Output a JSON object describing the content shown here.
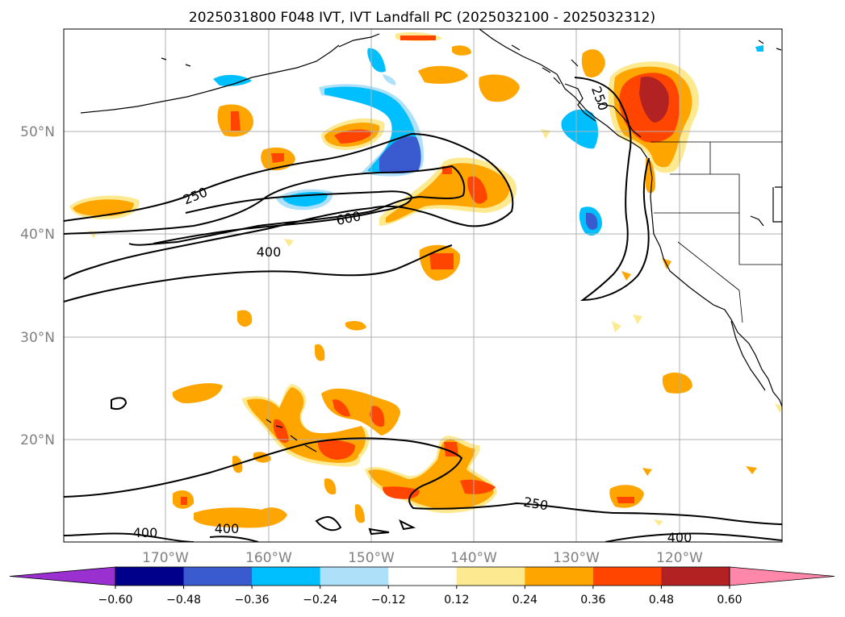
{
  "title": "2025031800 F048 IVT, IVT Landfall PC (2025032100 - 2025032312)",
  "axes": {
    "lat_labels": [
      "50°N",
      "40°N",
      "30°N",
      "20°N"
    ],
    "lon_labels": [
      "170°W",
      "160°W",
      "150°W",
      "140°W",
      "130°W",
      "120°W"
    ],
    "lat_values": [
      50,
      40,
      30,
      20
    ],
    "lon_values": [
      -170,
      -160,
      -150,
      -140,
      -130,
      -120
    ],
    "lon_range": [
      -180,
      -110
    ],
    "lat_range": [
      10,
      60
    ],
    "grid": true
  },
  "contour_labels": [
    "250",
    "600",
    "400",
    "400",
    "400",
    "250",
    "400",
    "250"
  ],
  "colorbar": {
    "tick_labels": [
      "−0.60",
      "−0.48",
      "−0.36",
      "−0.24",
      "−0.12",
      "0.12",
      "0.24",
      "0.36",
      "0.48",
      "0.60"
    ],
    "colors": [
      "#9b30d0",
      "#00008b",
      "#3a5bd0",
      "#00bfff",
      "#aee0fa",
      "#ffffff",
      "#fde98f",
      "#ffa500",
      "#ff4500",
      "#b22222",
      "#ff88aa"
    ]
  },
  "chart_data": {
    "type": "heatmap",
    "title": "2025031800 F048 IVT, IVT Landfall PC (2025032100 - 2025032312)",
    "x_ticks": [
      "170°W",
      "160°W",
      "150°W",
      "140°W",
      "130°W",
      "120°W"
    ],
    "y_ticks": [
      "50°N",
      "40°N",
      "30°N",
      "20°N"
    ],
    "contour_levels": [
      250,
      400,
      600
    ],
    "colorbar_levels": [
      -0.6,
      -0.48,
      -0.36,
      -0.24,
      -0.12,
      0.12,
      0.24,
      0.36,
      0.48,
      0.6
    ]
  }
}
